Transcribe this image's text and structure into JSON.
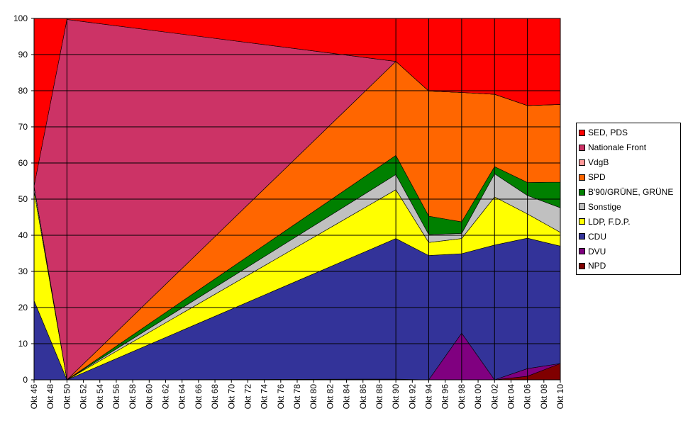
{
  "chart_data": {
    "type": "area",
    "stacked": true,
    "stacking": "percent",
    "ylim": [
      0,
      100
    ],
    "yticks": [
      0,
      10,
      20,
      30,
      40,
      50,
      60,
      70,
      80,
      90,
      100
    ],
    "grid": true,
    "legend_position": "right",
    "plot_background": "#c0c0c0",
    "x_labels": [
      "Okt 46",
      "Okt 48",
      "Okt 50",
      "Okt 52",
      "Okt 54",
      "Okt 56",
      "Okt 58",
      "Okt 60",
      "Okt 62",
      "Okt 64",
      "Okt 66",
      "Okt 68",
      "Okt 70",
      "Okt 72",
      "Okt 74",
      "Okt 76",
      "Okt 78",
      "Okt 80",
      "Okt 82",
      "Okt 84",
      "Okt 86",
      "Okt 88",
      "Okt 90",
      "Okt 92",
      "Okt 94",
      "Okt 96",
      "Okt 98",
      "Okt 00",
      "Okt 02",
      "Okt 04",
      "Okt 06",
      "Okt 08",
      "Okt 10"
    ],
    "x_values": [
      1946,
      1950,
      1990,
      1994,
      1998,
      2002,
      2006,
      2010
    ],
    "series": [
      {
        "name": "NPD",
        "color": "#800000",
        "values": [
          0,
          0,
          0,
          0,
          0,
          0,
          1,
          4.5
        ]
      },
      {
        "name": "DVU",
        "color": "#800080",
        "values": [
          0,
          0,
          0.2,
          0,
          12.9,
          0,
          2.1,
          0
        ]
      },
      {
        "name": "CDU",
        "color": "#333399",
        "values": [
          21.9,
          0,
          38.9,
          34.4,
          22.0,
          37.3,
          36.1,
          32.5
        ]
      },
      {
        "name": "LDP, F.D.P.",
        "color": "#ffff00",
        "values": [
          30.3,
          0,
          13.5,
          3.6,
          4.2,
          13.3,
          6.7,
          3.8
        ]
      },
      {
        "name": "Sonstige",
        "color": "#c0c0c0",
        "values": [
          1.4,
          0,
          4.2,
          2.2,
          1.4,
          6.4,
          5.1,
          6.8
        ]
      },
      {
        "name": "B'90/GRÜNE, GRÜNE",
        "color": "#008000",
        "values": [
          0,
          0,
          5.3,
          5.1,
          3.2,
          2.0,
          3.6,
          7.1
        ]
      },
      {
        "name": "SPD",
        "color": "#ff6600",
        "values": [
          0,
          0,
          26.0,
          34.6,
          35.8,
          20.0,
          21.3,
          21.5
        ]
      },
      {
        "name": "VdgB",
        "color": "#ff9999",
        "values": [
          0,
          0,
          0,
          0,
          0,
          0,
          0,
          0
        ]
      },
      {
        "name": "Nationale Front",
        "color": "#cc3366",
        "values": [
          0,
          99.7,
          0,
          0,
          0,
          0,
          0,
          0
        ]
      },
      {
        "name": "SED, PDS",
        "color": "#ff0000",
        "values": [
          46.4,
          0.3,
          11.9,
          20.1,
          20.5,
          21.0,
          24.1,
          23.8
        ]
      }
    ],
    "legend_order": [
      "SED, PDS",
      "Nationale Front",
      "VdgB",
      "SPD",
      "B'90/GRÜNE, GRÜNE",
      "Sonstige",
      "LDP, F.D.P.",
      "CDU",
      "DVU",
      "NPD"
    ]
  }
}
